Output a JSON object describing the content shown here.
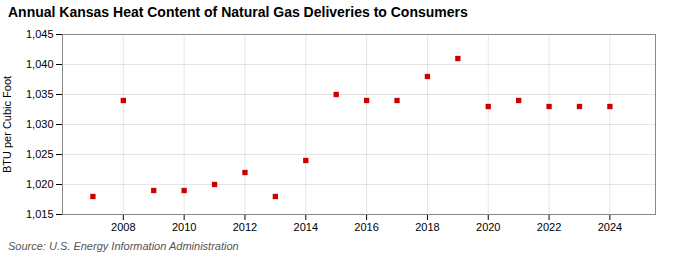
{
  "chart_data": {
    "type": "scatter",
    "title": "Annual Kansas Heat Content of Natural Gas Deliveries to Consumers",
    "ylabel": "BTU per Cubic Foot",
    "source": "Source: U.S. Energy Information Administration",
    "x": [
      2007,
      2008,
      2009,
      2010,
      2011,
      2012,
      2013,
      2014,
      2015,
      2016,
      2017,
      2018,
      2019,
      2020,
      2021,
      2022,
      2023,
      2024
    ],
    "values": [
      1018,
      1034,
      1019,
      1019,
      1020,
      1022,
      1018,
      1024,
      1035,
      1034,
      1034,
      1038,
      1041,
      1033,
      1034,
      1033,
      1033,
      1033
    ],
    "xlim": [
      2006,
      2025.5
    ],
    "xticks": [
      2008,
      2010,
      2012,
      2014,
      2016,
      2018,
      2020,
      2022,
      2024
    ],
    "ylim": [
      1015,
      1045
    ],
    "yticks": [
      {
        "value": 1015,
        "label": "1,015"
      },
      {
        "value": 1020,
        "label": "1,020"
      },
      {
        "value": 1025,
        "label": "1,025"
      },
      {
        "value": 1030,
        "label": "1,030"
      },
      {
        "value": 1035,
        "label": "1,035"
      },
      {
        "value": 1040,
        "label": "1,040"
      },
      {
        "value": 1045,
        "label": "1,045"
      }
    ],
    "color": "#cc0000",
    "marker": "square",
    "grid": true
  }
}
